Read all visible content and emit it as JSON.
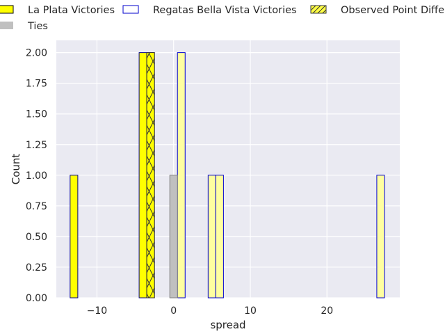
{
  "chart_data": {
    "type": "bar",
    "xlabel": "spread",
    "ylabel": "Count",
    "xlim": [
      -15.3,
      29.5
    ],
    "ylim": [
      0,
      2.1
    ],
    "x_ticks": [
      -10,
      0,
      10,
      20
    ],
    "x_tick_labels": [
      "−10",
      "0",
      "10",
      "20"
    ],
    "y_ticks": [
      0,
      0.25,
      0.5,
      0.75,
      1.0,
      1.25,
      1.5,
      1.75,
      2.0
    ],
    "y_tick_labels": [
      "0.00",
      "0.25",
      "0.50",
      "0.75",
      "1.00",
      "1.25",
      "1.50",
      "1.75",
      "2.00"
    ],
    "grid": true,
    "bin_width": 1.0,
    "legend_placement": "top",
    "series": [
      {
        "name": "La Plata Victories",
        "fill": "#ffff00",
        "edge": "#00008b",
        "bins": [
          {
            "x0": -13.5,
            "count": 1
          },
          {
            "x0": -4.5,
            "count": 2
          },
          {
            "x0": -3.5,
            "count": 2
          }
        ]
      },
      {
        "name": "Regatas Bella Vista Victories",
        "fill": "#ffffa0",
        "edge": "#0000cd",
        "bins": [
          {
            "x0": 0.5,
            "count": 2
          },
          {
            "x0": 4.5,
            "count": 1
          },
          {
            "x0": 5.5,
            "count": 1
          },
          {
            "x0": 26.5,
            "count": 1
          }
        ]
      },
      {
        "name": "Ties",
        "fill": "#c0c0c0",
        "edge": "#808080",
        "bins": [
          {
            "x0": -0.5,
            "count": 1
          }
        ]
      },
      {
        "name": "Observed Point Difference",
        "fill": "#ffff00",
        "edge": "#333333",
        "hatch": "x",
        "bins": [
          {
            "x0": -3.5,
            "count": 2
          }
        ]
      }
    ],
    "legend": [
      {
        "label": "La Plata Victories",
        "fill": "#ffff00",
        "edge": "#000000",
        "hatch": ""
      },
      {
        "label": "Regatas Bella Vista Victories",
        "fill": "#ffffff",
        "edge": "#0000cd",
        "hatch": ""
      },
      {
        "label": "Observed Point Difference",
        "fill": "#ffff44",
        "edge": "#333333",
        "hatch": "/"
      },
      {
        "label": "Ties",
        "fill": "#c0c0c0",
        "edge": "none",
        "hatch": ""
      }
    ]
  },
  "colors": {
    "plot_background": "#eaeaf2",
    "grid": "#ffffff",
    "text": "#262626"
  }
}
